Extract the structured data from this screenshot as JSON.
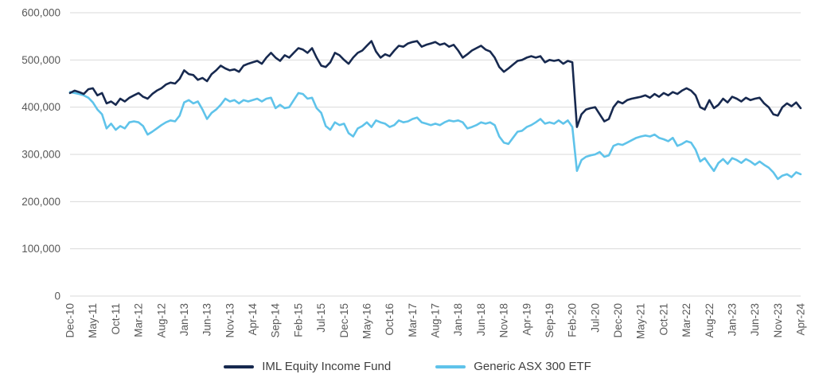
{
  "chart_data": {
    "type": "line",
    "title": "",
    "xlabel": "",
    "ylabel": "",
    "ylim": [
      0,
      600000
    ],
    "y_ticks": [
      0,
      100000,
      200000,
      300000,
      400000,
      500000,
      600000
    ],
    "y_tick_labels": [
      "0",
      "100,000",
      "200,000",
      "300,000",
      "400,000",
      "500,000",
      "600,000"
    ],
    "grid": true,
    "legend_position": "bottom",
    "x_tick_labels": [
      "Dec-10",
      "May-11",
      "Oct-11",
      "Mar-12",
      "Aug-12",
      "Jan-13",
      "Jun-13",
      "Nov-13",
      "Apr-14",
      "Sep-14",
      "Feb-15",
      "Jul-15",
      "Dec-15",
      "May-16",
      "Oct-16",
      "Mar-17",
      "Aug-17",
      "Jan-18",
      "Jun-18",
      "Nov-18",
      "Apr-19",
      "Sep-19",
      "Feb-20",
      "Jul-20",
      "Dec-20",
      "May-21",
      "Oct-21",
      "Mar-22",
      "Aug-22",
      "Jan-23",
      "Jun-23",
      "Nov-23",
      "Apr-24"
    ],
    "tick_interval": 5,
    "x_frequency": "monthly",
    "series": [
      {
        "name": "IML Equity Income Fund",
        "color": "#17294f",
        "values": [
          430000,
          435000,
          432000,
          428000,
          438000,
          440000,
          425000,
          430000,
          408000,
          412000,
          405000,
          418000,
          412000,
          420000,
          425000,
          430000,
          422000,
          418000,
          428000,
          435000,
          440000,
          448000,
          452000,
          450000,
          460000,
          478000,
          470000,
          468000,
          458000,
          462000,
          455000,
          470000,
          478000,
          488000,
          482000,
          478000,
          480000,
          475000,
          488000,
          492000,
          495000,
          498000,
          492000,
          505000,
          515000,
          505000,
          498000,
          510000,
          505000,
          515000,
          525000,
          522000,
          515000,
          525000,
          505000,
          488000,
          485000,
          495000,
          515000,
          510000,
          500000,
          492000,
          505000,
          515000,
          520000,
          530000,
          540000,
          518000,
          505000,
          512000,
          508000,
          520000,
          530000,
          528000,
          535000,
          538000,
          540000,
          528000,
          532000,
          535000,
          538000,
          532000,
          535000,
          528000,
          532000,
          520000,
          505000,
          512000,
          520000,
          525000,
          530000,
          522000,
          518000,
          505000,
          485000,
          475000,
          482000,
          490000,
          498000,
          500000,
          505000,
          508000,
          505000,
          508000,
          495000,
          500000,
          498000,
          500000,
          492000,
          498000,
          495000,
          358000,
          385000,
          395000,
          398000,
          400000,
          385000,
          370000,
          375000,
          400000,
          412000,
          408000,
          415000,
          418000,
          420000,
          422000,
          425000,
          420000,
          428000,
          422000,
          430000,
          425000,
          432000,
          428000,
          435000,
          440000,
          435000,
          425000,
          400000,
          395000,
          415000,
          398000,
          405000,
          418000,
          410000,
          422000,
          418000,
          412000,
          420000,
          415000,
          418000,
          420000,
          408000,
          400000,
          385000,
          382000,
          400000,
          408000,
          402000,
          410000,
          398000
        ]
      },
      {
        "name": "Generic ASX 300 ETF",
        "color": "#5fc3ea",
        "values": [
          432000,
          430000,
          428000,
          425000,
          420000,
          410000,
          395000,
          385000,
          355000,
          365000,
          352000,
          360000,
          355000,
          368000,
          370000,
          368000,
          360000,
          342000,
          348000,
          355000,
          362000,
          368000,
          372000,
          370000,
          382000,
          410000,
          415000,
          408000,
          412000,
          395000,
          375000,
          388000,
          395000,
          405000,
          418000,
          412000,
          415000,
          408000,
          415000,
          412000,
          415000,
          418000,
          412000,
          418000,
          420000,
          398000,
          405000,
          398000,
          400000,
          415000,
          430000,
          428000,
          418000,
          420000,
          398000,
          388000,
          360000,
          352000,
          368000,
          362000,
          365000,
          345000,
          338000,
          355000,
          360000,
          368000,
          358000,
          372000,
          368000,
          365000,
          358000,
          362000,
          372000,
          368000,
          370000,
          375000,
          378000,
          368000,
          365000,
          362000,
          365000,
          362000,
          368000,
          372000,
          370000,
          372000,
          368000,
          355000,
          358000,
          362000,
          368000,
          365000,
          368000,
          362000,
          338000,
          325000,
          322000,
          335000,
          348000,
          350000,
          358000,
          362000,
          368000,
          375000,
          365000,
          368000,
          365000,
          372000,
          365000,
          372000,
          358000,
          265000,
          288000,
          295000,
          298000,
          300000,
          305000,
          295000,
          298000,
          318000,
          322000,
          320000,
          325000,
          330000,
          335000,
          338000,
          340000,
          338000,
          342000,
          335000,
          332000,
          328000,
          335000,
          318000,
          322000,
          328000,
          325000,
          310000,
          285000,
          292000,
          278000,
          265000,
          282000,
          290000,
          280000,
          292000,
          288000,
          282000,
          290000,
          285000,
          278000,
          285000,
          278000,
          272000,
          262000,
          248000,
          255000,
          258000,
          252000,
          262000,
          258000
        ]
      }
    ],
    "style": {
      "grid_color": "#d9d9d9",
      "axis_text_color": "#595959",
      "line_width": 2.6
    }
  }
}
